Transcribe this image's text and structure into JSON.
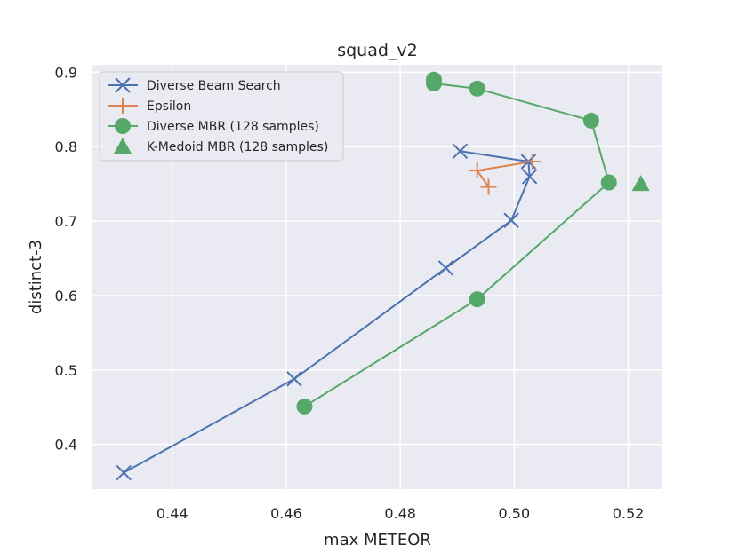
{
  "chart_data": {
    "type": "line",
    "title": "squad_v2",
    "xlabel": "max METEOR",
    "ylabel": "distinct-3",
    "xlim": [
      0.426,
      0.526
    ],
    "ylim": [
      0.34,
      0.91
    ],
    "xticks": [
      0.44,
      0.46,
      0.48,
      0.5,
      0.52
    ],
    "xtick_labels": [
      "0.44",
      "0.46",
      "0.48",
      "0.50",
      "0.52"
    ],
    "yticks": [
      0.4,
      0.5,
      0.6,
      0.7,
      0.8,
      0.9
    ],
    "ytick_labels": [
      "0.4",
      "0.5",
      "0.6",
      "0.7",
      "0.8",
      "0.9"
    ],
    "grid": true,
    "legend_position": "top-left",
    "series": [
      {
        "name": "Diverse Beam Search",
        "color": "#4c72b0",
        "marker": "x",
        "connected": true,
        "points": [
          {
            "x": 0.4315,
            "y": 0.362
          },
          {
            "x": 0.4614,
            "y": 0.488
          },
          {
            "x": 0.488,
            "y": 0.637
          },
          {
            "x": 0.4995,
            "y": 0.701
          },
          {
            "x": 0.5027,
            "y": 0.76
          },
          {
            "x": 0.5025,
            "y": 0.78
          },
          {
            "x": 0.4905,
            "y": 0.794
          }
        ]
      },
      {
        "name": "Epsilon",
        "color": "#dd8452",
        "marker": "plus",
        "connected": true,
        "points": [
          {
            "x": 0.4955,
            "y": 0.746
          },
          {
            "x": 0.4935,
            "y": 0.768
          },
          {
            "x": 0.5032,
            "y": 0.78
          }
        ]
      },
      {
        "name": "Diverse MBR (128 samples)",
        "color": "#55a868",
        "marker": "circle",
        "connected": true,
        "points": [
          {
            "x": 0.4632,
            "y": 0.451
          },
          {
            "x": 0.4935,
            "y": 0.595
          },
          {
            "x": 0.5166,
            "y": 0.752
          },
          {
            "x": 0.5135,
            "y": 0.835
          },
          {
            "x": 0.4935,
            "y": 0.878
          },
          {
            "x": 0.4859,
            "y": 0.885
          },
          {
            "x": 0.4859,
            "y": 0.89
          }
        ]
      },
      {
        "name": "K-Medoid MBR (128 samples)",
        "color": "#55a868",
        "marker": "triangle",
        "connected": false,
        "points": [
          {
            "x": 0.5222,
            "y": 0.75
          }
        ]
      }
    ]
  }
}
